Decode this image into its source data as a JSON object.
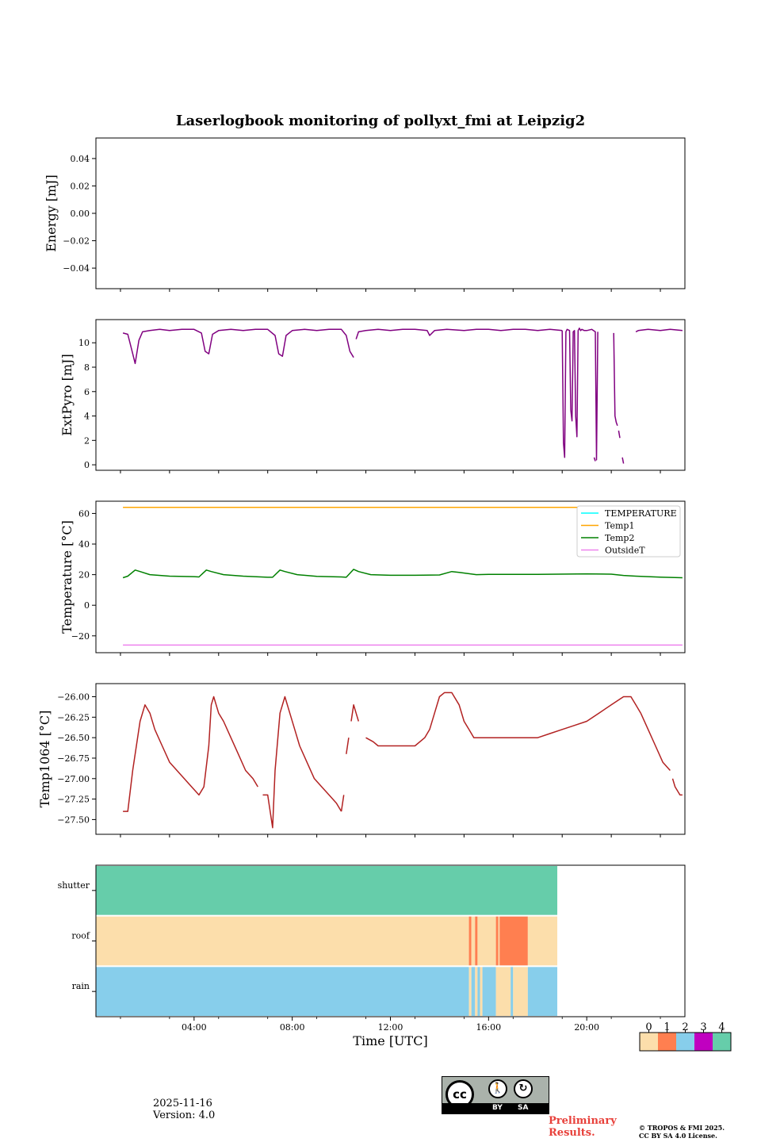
{
  "page": {
    "date": "2025-11-16",
    "version": "Version: 4.0",
    "preliminary": [
      "Preliminary",
      "Results."
    ],
    "copyright": [
      "© TROPOS & FMI 2025.",
      "CC BY SA 4.0 License."
    ],
    "license_badge": {
      "left": "cc",
      "by": "BY",
      "sa": "SA"
    }
  },
  "colors": {
    "pyro": "#800080",
    "temp1": "#ffa500",
    "temp2": "#008000",
    "temperature": "#00ffff",
    "outsideT": "#ee82ee",
    "temp1064": "#b22222",
    "status": [
      "#fcdeab",
      "#ff7f50",
      "#87ceeb",
      "#c000c0",
      "#66cdaa"
    ]
  },
  "chart_data": [
    {
      "type": "line",
      "title": "Laserlogbook monitoring of pollyxt_fmi at Leipzig2",
      "ylabel": "Energy [mJ]",
      "xlim": [
        0,
        24
      ],
      "ylim": [
        -0.055,
        0.055
      ],
      "yticks": [
        0.04,
        0.02,
        0.0,
        -0.02,
        -0.04
      ],
      "ytick_labels": [
        "0.04",
        "0.02",
        "0.00",
        "−0.02",
        "−0.04"
      ],
      "series": []
    },
    {
      "type": "line",
      "ylabel": "ExtPyro [mJ]",
      "xlim": [
        0,
        24
      ],
      "ylim": [
        -0.45,
        11.9
      ],
      "yticks": [
        0,
        2,
        4,
        6,
        8,
        10
      ],
      "ytick_labels": [
        "0",
        "2",
        "4",
        "6",
        "8",
        "10"
      ],
      "series": [
        {
          "name": "ExtPyro",
          "color": "#800080",
          "segments": [
            {
              "x": [
                1.1,
                1.3,
                1.45,
                1.6,
                1.75,
                1.9,
                2.2,
                2.6,
                3.0,
                3.5,
                4.0,
                4.3,
                4.45,
                4.6,
                4.75,
                5.0,
                5.5,
                6.0,
                6.5,
                7.0,
                7.3,
                7.45,
                7.6,
                7.75,
                8.0,
                8.5,
                9.0,
                9.5,
                10.0,
                10.2,
                10.35,
                10.5
              ],
              "y": [
                10.8,
                10.7,
                9.5,
                8.3,
                10.2,
                10.9,
                11.0,
                11.1,
                11.0,
                11.1,
                11.1,
                10.8,
                9.3,
                9.1,
                10.7,
                11.0,
                11.1,
                11.0,
                11.1,
                11.1,
                10.6,
                9.1,
                8.9,
                10.6,
                11.0,
                11.1,
                11.0,
                11.1,
                11.1,
                10.6,
                9.3,
                8.8
              ]
            },
            {
              "x": [
                10.6,
                10.7,
                11.0,
                11.5,
                12.0,
                12.5,
                13.0,
                13.5,
                13.6,
                13.8,
                14.3,
                15.0,
                15.5,
                16.0,
                16.5,
                17.0,
                17.5,
                18.0,
                18.5,
                19.0
              ],
              "y": [
                10.3,
                10.9,
                11.0,
                11.1,
                11.0,
                11.1,
                11.1,
                11.0,
                10.6,
                11.0,
                11.1,
                11.0,
                11.1,
                11.1,
                11.0,
                11.1,
                11.1,
                11.0,
                11.1,
                11.0
              ]
            },
            {
              "x": [
                19.0,
                19.05,
                19.1,
                19.15,
                19.2,
                19.3,
                19.35,
                19.4,
                19.45,
                19.5,
                19.55,
                19.6,
                19.65,
                19.7,
                19.75,
                19.8,
                19.9,
                20.0,
                20.2,
                20.35,
                20.4,
                20.45
              ],
              "y": [
                11.0,
                1.8,
                0.6,
                10.9,
                11.1,
                11.0,
                4.5,
                3.6,
                10.9,
                11.0,
                4.0,
                2.3,
                11.0,
                11.2,
                11.0,
                11.1,
                11.0,
                11.0,
                11.1,
                10.9,
                0.4,
                10.9
              ]
            },
            {
              "x": [
                20.3,
                20.35
              ],
              "y": [
                0.6,
                0.3
              ]
            },
            {
              "x": [
                21.1,
                21.15,
                21.2,
                21.25
              ],
              "y": [
                10.8,
                4.0,
                3.5,
                3.2
              ]
            },
            {
              "x": [
                21.3,
                21.35
              ],
              "y": [
                2.8,
                2.2
              ]
            },
            {
              "x": [
                21.45,
                21.5
              ],
              "y": [
                0.6,
                0.1
              ]
            },
            {
              "x": [
                22.0,
                22.1,
                22.5,
                23.0,
                23.4,
                23.9
              ],
              "y": [
                10.9,
                11.0,
                11.1,
                11.0,
                11.1,
                11.0
              ]
            }
          ]
        }
      ]
    },
    {
      "type": "line",
      "ylabel": "Temperature [°C]",
      "xlim": [
        0,
        24
      ],
      "ylim": [
        -31,
        68
      ],
      "yticks": [
        60,
        40,
        20,
        0,
        -20
      ],
      "ytick_labels": [
        "60",
        "40",
        "20",
        "0",
        "−20"
      ],
      "legend": "top-right",
      "series": [
        {
          "name": "TEMPERATURE",
          "color": "#00ffff",
          "x": [],
          "y": []
        },
        {
          "name": "Temp1",
          "color": "#ffa500",
          "x": [
            1.1,
            20.0
          ],
          "y": [
            64.0,
            64.0
          ]
        },
        {
          "name": "Temp2",
          "color": "#008000",
          "x": [
            1.1,
            1.3,
            1.6,
            1.8,
            2.2,
            3.0,
            4.0,
            4.2,
            4.5,
            4.7,
            5.2,
            6.0,
            7.0,
            7.2,
            7.5,
            7.7,
            8.2,
            9.0,
            10.0,
            10.2,
            10.5,
            10.7,
            11.2,
            12.0,
            13.0,
            14.0,
            14.5,
            14.8,
            15.5,
            16.0,
            18.0,
            20.0,
            21.0,
            21.5,
            22.0,
            23.0,
            23.9
          ],
          "y": [
            18.0,
            19.0,
            23.0,
            22.0,
            20.0,
            19.0,
            18.7,
            18.5,
            23.0,
            22.0,
            20.0,
            19.0,
            18.3,
            18.3,
            23.0,
            22.0,
            20.0,
            18.9,
            18.5,
            18.3,
            23.5,
            22.0,
            20.0,
            19.6,
            19.6,
            19.8,
            22.0,
            21.5,
            20.0,
            20.2,
            20.2,
            20.5,
            20.3,
            19.5,
            19.0,
            18.4,
            18.0
          ]
        },
        {
          "name": "OutsideT",
          "color": "#ee82ee",
          "x": [
            1.1,
            23.9
          ],
          "y": [
            -26.0,
            -26.0
          ]
        }
      ]
    },
    {
      "type": "line",
      "ylabel": "Temp1064 [°C]",
      "xlim": [
        0,
        24
      ],
      "ylim": [
        -27.68,
        -25.84
      ],
      "yticks": [
        -26.0,
        -26.25,
        -26.5,
        -26.75,
        -27.0,
        -27.25,
        -27.5
      ],
      "ytick_labels": [
        "−26.00",
        "−26.25",
        "−26.50",
        "−26.75",
        "−27.00",
        "−27.25",
        "−27.50"
      ],
      "series": [
        {
          "name": "Temp1064",
          "color": "#b22222",
          "segments": [
            {
              "x": [
                1.1,
                1.3,
                1.5,
                1.8,
                2.0,
                2.2,
                2.4,
                2.7,
                3.0,
                3.3,
                3.6,
                3.9,
                4.2,
                4.4,
                4.6,
                4.7,
                4.8,
                5.0,
                5.2,
                5.5,
                5.8,
                6.1,
                6.4,
                6.6
              ],
              "y": [
                -27.4,
                -27.4,
                -26.9,
                -26.3,
                -26.1,
                -26.2,
                -26.4,
                -26.6,
                -26.8,
                -26.9,
                -27.0,
                -27.1,
                -27.2,
                -27.1,
                -26.6,
                -26.1,
                -26.0,
                -26.2,
                -26.3,
                -26.5,
                -26.7,
                -26.9,
                -27.0,
                -27.1
              ]
            },
            {
              "x": [
                6.8,
                7.0,
                7.2,
                7.3,
                7.5,
                7.7,
                7.9,
                8.1,
                8.3,
                8.6,
                8.9,
                9.2,
                9.5,
                9.8,
                10.0
              ],
              "y": [
                -27.2,
                -27.2,
                -27.6,
                -26.9,
                -26.2,
                -26.0,
                -26.2,
                -26.4,
                -26.6,
                -26.8,
                -27.0,
                -27.1,
                -27.2,
                -27.3,
                -27.4
              ]
            },
            {
              "x": [
                10.0,
                10.1
              ],
              "y": [
                -27.4,
                -27.2
              ]
            },
            {
              "x": [
                10.2,
                10.3
              ],
              "y": [
                -26.7,
                -26.5
              ]
            },
            {
              "x": [
                10.4,
                10.5,
                10.6,
                10.7
              ],
              "y": [
                -26.3,
                -26.1,
                -26.2,
                -26.3
              ]
            },
            {
              "x": [
                11.0,
                11.3,
                11.5,
                11.8,
                12.2,
                12.6,
                13.0,
                13.4,
                13.6,
                13.8,
                14.0,
                14.2,
                14.5,
                14.8,
                15.0,
                15.2
              ],
              "y": [
                -26.5,
                -26.55,
                -26.6,
                -26.6,
                -26.6,
                -26.6,
                -26.6,
                -26.5,
                -26.4,
                -26.2,
                -26.0,
                -25.95,
                -25.95,
                -26.1,
                -26.3,
                -26.4
              ]
            },
            {
              "x": [
                15.2,
                15.4,
                15.6,
                16.0,
                16.5,
                17.0,
                17.5,
                18.0,
                18.5,
                19.0,
                19.5,
                20.0,
                20.5,
                21.0,
                21.5,
                21.8,
                22.0,
                22.2
              ],
              "y": [
                -26.4,
                -26.5,
                -26.5,
                -26.5,
                -26.5,
                -26.5,
                -26.5,
                -26.5,
                -26.45,
                -26.4,
                -26.35,
                -26.3,
                -26.2,
                -26.1,
                -26.0,
                -26.0,
                -26.1,
                -26.2
              ]
            },
            {
              "x": [
                22.2,
                22.5,
                22.8,
                23.1,
                23.4
              ],
              "y": [
                -26.2,
                -26.4,
                -26.6,
                -26.8,
                -26.9
              ]
            },
            {
              "x": [
                23.5,
                23.6,
                23.8,
                23.9
              ],
              "y": [
                -27.0,
                -27.1,
                -27.2,
                -27.2
              ]
            }
          ]
        }
      ]
    },
    {
      "type": "heatmap",
      "xlabel": "Time [UTC]",
      "xlim": [
        0,
        24
      ],
      "xticks": [
        4,
        8,
        12,
        16,
        20
      ],
      "xtick_labels": [
        "04:00",
        "08:00",
        "12:00",
        "16:00",
        "20:00"
      ],
      "rows": [
        "shutter",
        "roof",
        "rain"
      ],
      "colorbar": {
        "ticks": [
          "0",
          "1",
          "2",
          "3",
          "4"
        ],
        "colors": [
          "#fcdeab",
          "#ff7f50",
          "#87ceeb",
          "#c000c0",
          "#66cdaa"
        ]
      },
      "bands": [
        {
          "row": "shutter",
          "segments": [
            {
              "start": 0.0,
              "end": 18.8,
              "value": 4
            }
          ]
        },
        {
          "row": "roof",
          "segments": [
            {
              "start": 0.0,
              "end": 15.2,
              "value": 0
            },
            {
              "start": 15.2,
              "end": 15.3,
              "value": 1
            },
            {
              "start": 15.3,
              "end": 15.45,
              "value": 0
            },
            {
              "start": 15.45,
              "end": 15.55,
              "value": 1
            },
            {
              "start": 15.55,
              "end": 16.3,
              "value": 0
            },
            {
              "start": 16.3,
              "end": 16.4,
              "value": 1
            },
            {
              "start": 16.4,
              "end": 16.45,
              "value": 0
            },
            {
              "start": 16.45,
              "end": 17.6,
              "value": 1
            },
            {
              "start": 17.6,
              "end": 18.8,
              "value": 0
            }
          ]
        },
        {
          "row": "rain",
          "segments": [
            {
              "start": 0.0,
              "end": 15.2,
              "value": 2
            },
            {
              "start": 15.2,
              "end": 15.3,
              "value": 0
            },
            {
              "start": 15.3,
              "end": 15.45,
              "value": 2
            },
            {
              "start": 15.45,
              "end": 15.55,
              "value": 0
            },
            {
              "start": 15.55,
              "end": 15.65,
              "value": 2
            },
            {
              "start": 15.65,
              "end": 15.75,
              "value": 0
            },
            {
              "start": 15.75,
              "end": 16.3,
              "value": 2
            },
            {
              "start": 16.3,
              "end": 16.9,
              "value": 0
            },
            {
              "start": 16.9,
              "end": 17.0,
              "value": 2
            },
            {
              "start": 17.0,
              "end": 17.6,
              "value": 0
            },
            {
              "start": 17.6,
              "end": 18.8,
              "value": 2
            }
          ]
        }
      ]
    }
  ]
}
